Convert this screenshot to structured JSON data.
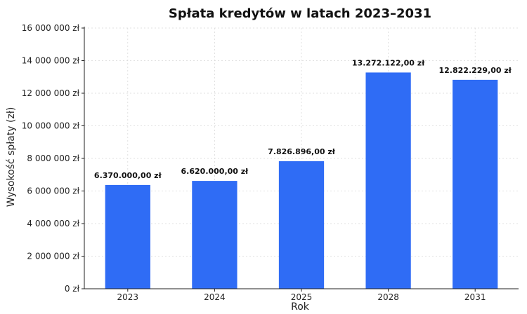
{
  "chart_data": {
    "type": "bar",
    "title": "Spłata kredytów w latach 2023–2031",
    "xlabel": "Rok",
    "ylabel": "Wysokość spłaty (zł)",
    "categories": [
      "2023",
      "2024",
      "2025",
      "2028",
      "2031"
    ],
    "values": [
      6370000,
      6620000,
      7826896,
      13272122,
      12822229
    ],
    "data_labels": [
      "6.370.000,00 zł",
      "6.620.000,00 zł",
      "7.826.896,00 zł",
      "13.272.122,00 zł",
      "12.822.229,00 zł"
    ],
    "ylim": [
      0,
      16000000
    ],
    "yticks": [
      0,
      2000000,
      4000000,
      6000000,
      8000000,
      10000000,
      12000000,
      14000000,
      16000000
    ],
    "ytick_labels": [
      "0 zł",
      "2 000 000 zł",
      "4 000 000 zł",
      "6 000 000 zł",
      "8 000 000 zł",
      "10 000 000 zł",
      "12 000 000 zł",
      "14 000 000 zł",
      "16 000 000 zł"
    ],
    "grid": true,
    "bar_color": "#2f6cf5"
  }
}
